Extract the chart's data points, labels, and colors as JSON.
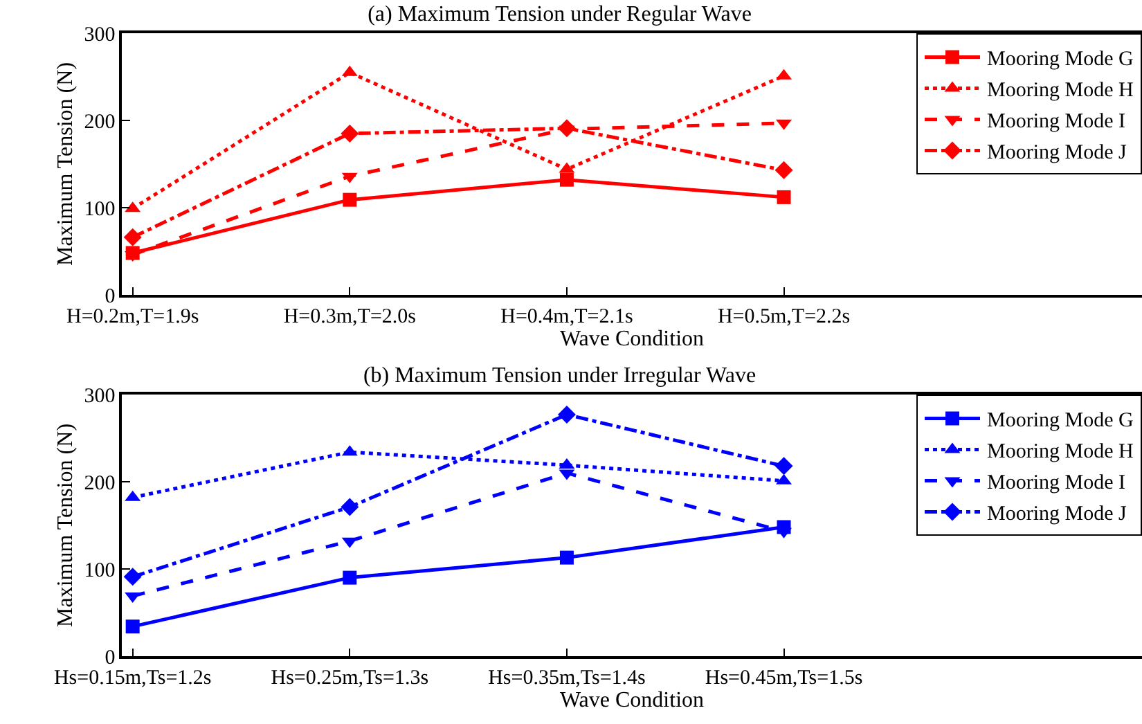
{
  "chart_data": [
    {
      "type": "line",
      "title": "(a) Maximum Tension under Regular Wave",
      "xlabel": "Wave Condition",
      "ylabel": "Maximum Tension (N)",
      "categories": [
        "H=0.2m,T=1.9s",
        "H=0.3m,T=2.0s",
        "H=0.4m,T=2.1s",
        "H=0.5m,T=2.2s"
      ],
      "ylim": [
        0,
        300
      ],
      "yticks": [
        0,
        100,
        200,
        300
      ],
      "grid": false,
      "legend": "top right",
      "series": [
        {
          "name": "Mooring Mode G",
          "color": "#ff0000",
          "values": [
            48,
            109,
            132,
            112
          ],
          "marker": "square",
          "line_style": "solid"
        },
        {
          "name": "Mooring Mode H",
          "color": "#ff0000",
          "values": [
            99,
            255,
            144,
            251
          ],
          "marker": "triangle",
          "line_style": "dotted"
        },
        {
          "name": "Mooring Mode I",
          "color": "#ff0000",
          "values": [
            46,
            136,
            190,
            197
          ],
          "marker": "triangle-down",
          "line_style": "dashed"
        },
        {
          "name": "Mooring Mode J",
          "color": "#ff0000",
          "values": [
            66,
            185,
            191,
            143
          ],
          "marker": "diamond",
          "line_style": "dashdot"
        }
      ]
    },
    {
      "type": "line",
      "title": "(b) Maximum Tension under Irregular Wave",
      "xlabel": "Wave Condition",
      "ylabel": "Maximum Tension (N)",
      "categories": [
        "Hs=0.15m,Ts=1.2s",
        "Hs=0.25m,Ts=1.3s",
        "Hs=0.35m,Ts=1.4s",
        "Hs=0.45m,Ts=1.5s"
      ],
      "ylim": [
        0,
        300
      ],
      "yticks": [
        0,
        100,
        200,
        300
      ],
      "grid": false,
      "legend": "top right",
      "series": [
        {
          "name": "Mooring Mode G",
          "color": "#0000ff",
          "values": [
            34,
            90,
            113,
            148
          ],
          "marker": "square",
          "line_style": "solid"
        },
        {
          "name": "Mooring Mode H",
          "color": "#0000ff",
          "values": [
            182,
            234,
            219,
            201
          ],
          "marker": "triangle",
          "line_style": "dotted"
        },
        {
          "name": "Mooring Mode I",
          "color": "#0000ff",
          "values": [
            69,
            132,
            210,
            143
          ],
          "marker": "triangle-down",
          "line_style": "dashed"
        },
        {
          "name": "Mooring Mode J",
          "color": "#0000ff",
          "values": [
            91,
            171,
            277,
            218
          ],
          "marker": "diamond",
          "line_style": "dashdot"
        }
      ]
    }
  ]
}
